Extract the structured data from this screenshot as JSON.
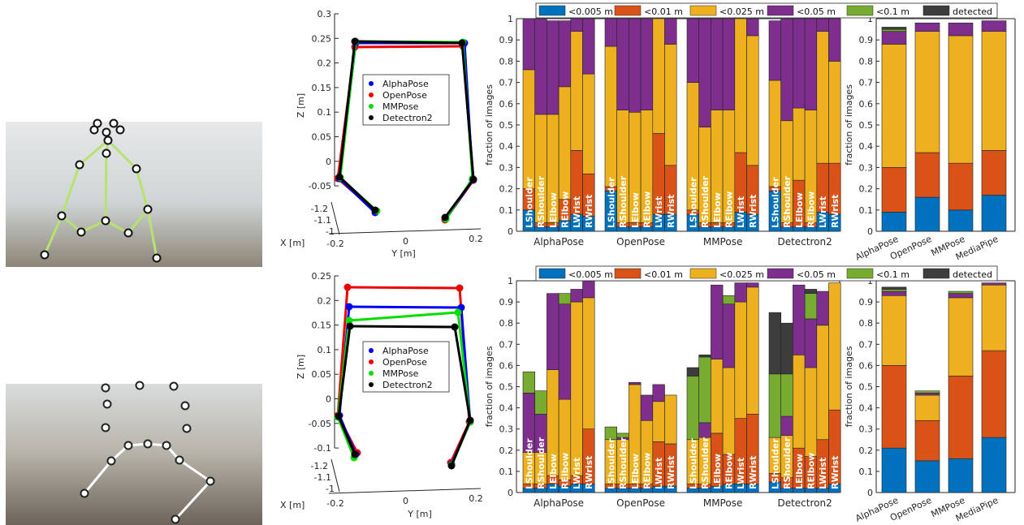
{
  "legend3d": [
    "AlphaPose",
    "OpenPose",
    "MMPose",
    "Detectron2"
  ],
  "colors": {
    "AlphaPose": "#0000ee",
    "OpenPose": "#ee0000",
    "MMPose": "#00dd00",
    "Detectron2": "#000000"
  },
  "stack_colors": [
    "#0072bd",
    "#d95319",
    "#edb120",
    "#7e2f8e",
    "#77ac30",
    "#3d3d3d"
  ],
  "stack_legend": [
    "<0.005 m",
    "<0.01 m",
    "<0.025 m",
    "<0.05 m",
    "<0.1 m",
    "detected"
  ],
  "joints": [
    "LShoulder",
    "RShoulder",
    "LElbow",
    "RElbow",
    "LWrist",
    "RWrist"
  ],
  "methods": [
    "AlphaPose",
    "OpenPose",
    "MMPose",
    "Detectron2"
  ],
  "methods5": [
    "AlphaPose",
    "OpenPose",
    "MMPose",
    "MediaPipe"
  ],
  "ylabel": "fraction of images",
  "axis3d": {
    "z": "Z [m]",
    "x": "X [m]",
    "y": "Y [m]"
  },
  "chart_data": [
    {
      "type": "bar",
      "name": "top-joint-chart",
      "ylim": [
        0,
        1
      ],
      "series_order": [
        "<0.005 m",
        "<0.01 m",
        "<0.025 m",
        "<0.05 m",
        "<0.1 m",
        "detected"
      ],
      "groups": [
        {
          "method": "AlphaPose",
          "bars": [
            [
              0.1,
              0.1,
              0.56,
              0.24,
              0,
              0
            ],
            [
              0.02,
              0.02,
              0.51,
              0.45,
              0,
              0
            ],
            [
              0.02,
              0.02,
              0.51,
              0.44,
              0,
              0
            ],
            [
              0.05,
              0.1,
              0.53,
              0.31,
              0,
              0
            ],
            [
              0.08,
              0.3,
              0.56,
              0.06,
              0,
              0
            ],
            [
              0.07,
              0.2,
              0.47,
              0.26,
              0,
              0
            ]
          ]
        },
        {
          "method": "OpenPose",
          "bars": [
            [
              0.19,
              0.02,
              0.66,
              0.13,
              0,
              0
            ],
            [
              0.02,
              0.02,
              0.53,
              0.43,
              0,
              0
            ],
            [
              0.02,
              0.02,
              0.52,
              0.44,
              0,
              0
            ],
            [
              0.02,
              0.02,
              0.53,
              0.43,
              0,
              0
            ],
            [
              0.08,
              0.38,
              0.54,
              0,
              0,
              0
            ],
            [
              0.08,
              0.23,
              0.57,
              0.12,
              0,
              0
            ]
          ]
        },
        {
          "method": "MMPose",
          "bars": [
            [
              0.08,
              0.02,
              0.6,
              0.3,
              0,
              0
            ],
            [
              0.02,
              0.02,
              0.45,
              0.51,
              0,
              0
            ],
            [
              0.02,
              0.02,
              0.53,
              0.43,
              0,
              0
            ],
            [
              0.02,
              0.02,
              0.53,
              0.43,
              0,
              0
            ],
            [
              0.09,
              0.28,
              0.63,
              0,
              0,
              0
            ],
            [
              0.08,
              0.23,
              0.61,
              0.08,
              0,
              0
            ]
          ]
        },
        {
          "method": "Detectron2",
          "bars": [
            [
              0.19,
              0.02,
              0.5,
              0.28,
              0,
              0
            ],
            [
              0.02,
              0.02,
              0.48,
              0.48,
              0,
              0
            ],
            [
              0.02,
              0.22,
              0.34,
              0.42,
              0,
              0
            ],
            [
              0.02,
              0.02,
              0.53,
              0.43,
              0,
              0
            ],
            [
              0.09,
              0.23,
              0.62,
              0.06,
              0,
              0
            ],
            [
              0.08,
              0.24,
              0.48,
              0.2,
              0,
              0
            ]
          ]
        }
      ]
    },
    {
      "type": "bar",
      "name": "top-summary-chart",
      "ylim": [
        0,
        1
      ],
      "categories": [
        "AlphaPose",
        "OpenPose",
        "MMPose",
        "MediaPipe"
      ],
      "bars": [
        [
          0.09,
          0.21,
          0.58,
          0.06,
          0.01,
          0.01
        ],
        [
          0.16,
          0.21,
          0.57,
          0.04,
          0,
          0
        ],
        [
          0.1,
          0.22,
          0.6,
          0.06,
          0,
          0
        ],
        [
          0.17,
          0.21,
          0.56,
          0.05,
          0,
          0
        ]
      ]
    },
    {
      "type": "bar",
      "name": "bottom-joint-chart",
      "ylim": [
        0,
        1
      ],
      "series_order": [
        "<0.005 m",
        "<0.01 m",
        "<0.025 m",
        "<0.05 m",
        "<0.1 m",
        "detected"
      ],
      "groups": [
        {
          "method": "AlphaPose",
          "bars": [
            [
              0.02,
              0.02,
              0.15,
              0.28,
              0.1,
              0
            ],
            [
              0.02,
              0.02,
              0.15,
              0.18,
              0.11,
              0
            ],
            [
              0.04,
              0.04,
              0.5,
              0.36,
              0,
              0
            ],
            [
              0.03,
              0.03,
              0.38,
              0.45,
              0.05,
              0
            ],
            [
              0.04,
              0.04,
              0.82,
              0.06,
              0,
              0
            ],
            [
              0.04,
              0.26,
              0.62,
              0.08,
              0,
              0
            ]
          ]
        },
        {
          "method": "OpenPose",
          "bars": [
            [
              0.02,
              0.02,
              0.21,
              0,
              0.06,
              0
            ],
            [
              0.02,
              0.02,
              0.21,
              0.01,
              0.02,
              0
            ],
            [
              0.02,
              0.02,
              0.47,
              0.01,
              0,
              0
            ],
            [
              0.02,
              0.02,
              0.3,
              0.12,
              0,
              0
            ],
            [
              0.03,
              0.21,
              0.19,
              0.08,
              0,
              0
            ],
            [
              0.03,
              0.2,
              0.23,
              0,
              0,
              0
            ]
          ]
        },
        {
          "method": "MMPose",
          "bars": [
            [
              0.02,
              0.02,
              0.21,
              0,
              0.3,
              0.04
            ],
            [
              0.02,
              0.02,
              0.22,
              0.07,
              0.31,
              0.01
            ],
            [
              0.03,
              0.25,
              0.35,
              0.35,
              0,
              0
            ],
            [
              0.04,
              0.14,
              0.41,
              0.3,
              0.04,
              0
            ],
            [
              0.04,
              0.31,
              0.55,
              0.09,
              0,
              0
            ],
            [
              0.04,
              0.33,
              0.6,
              0.02,
              0,
              0
            ]
          ]
        },
        {
          "method": "Detectron2",
          "bars": [
            [
              0.05,
              0.04,
              0.17,
              0,
              0.3,
              0.29
            ],
            [
              0.02,
              0.05,
              0.2,
              0.09,
              0.2,
              0.24
            ],
            [
              0.02,
              0.19,
              0.44,
              0.33,
              0,
              0
            ],
            [
              0.02,
              0.15,
              0.42,
              0.23,
              0.12,
              0.02
            ],
            [
              0.02,
              0.23,
              0.54,
              0.16,
              0,
              0
            ],
            [
              0.04,
              0.35,
              0.6,
              0,
              0,
              0
            ]
          ]
        }
      ]
    },
    {
      "type": "bar",
      "name": "bottom-summary-chart",
      "ylim": [
        0,
        1
      ],
      "categories": [
        "AlphaPose",
        "OpenPose",
        "MMPose",
        "MediaPipe"
      ],
      "bars": [
        [
          0.21,
          0.39,
          0.33,
          0.02,
          0.01,
          0.01
        ],
        [
          0.15,
          0.19,
          0.12,
          0.01,
          0.01,
          0
        ],
        [
          0.16,
          0.39,
          0.37,
          0.02,
          0.01,
          0
        ],
        [
          0.26,
          0.41,
          0.31,
          0.01,
          0,
          0
        ]
      ]
    }
  ],
  "plot3d_top": {
    "zticks": [
      "0.3",
      "0.25",
      "0.2",
      "0.15",
      "0.1",
      "0.05",
      "0",
      "-0.05"
    ],
    "xticks": [
      "-1.2",
      "-1.1",
      "-1"
    ],
    "yticks": [
      "-0.2",
      "0",
      "0.2"
    ]
  },
  "plot3d_bot": {
    "zticks": [
      "0.25",
      "0.2",
      "0.15",
      "0.1",
      "0.05",
      "0",
      "-0.05",
      "-0.1"
    ],
    "xticks": [
      "-1.2",
      "-1.1",
      "-1"
    ],
    "yticks": [
      "-0.2",
      "0",
      "0.2"
    ]
  }
}
